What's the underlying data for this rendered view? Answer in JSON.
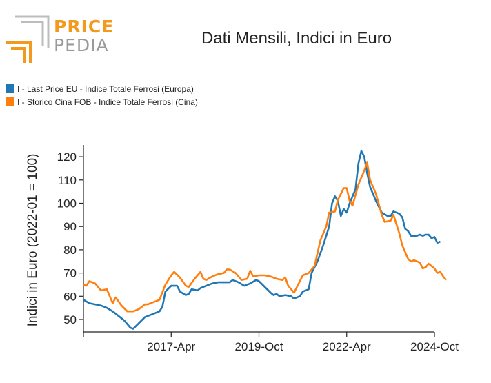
{
  "logo": {
    "line1": "PRICE",
    "line2": "PEDIA"
  },
  "colors": {
    "series1": "#1f77b4",
    "series2": "#ff7f0e",
    "logo_orange": "#f39a1e",
    "logo_gray": "#9a9a9a"
  },
  "chart_data": {
    "type": "line",
    "title": "Dati Mensili, Indici in Euro",
    "xlabel": "",
    "ylabel": "Indici in Euro (2022-01 = 100)",
    "ylim": [
      45,
      125
    ],
    "yticks": [
      50,
      60,
      70,
      80,
      90,
      100,
      110,
      120
    ],
    "xticks": [
      "2017-Apr",
      "2019-Oct",
      "2022-Apr",
      "2024-Oct"
    ],
    "x_range": [
      "2014-10",
      "2024-10"
    ],
    "grid": false,
    "legend_position": "top-left",
    "series": [
      {
        "name": "I - Last Price EU - Indice Totale Ferrosi (Europa)",
        "color": "#1f77b4",
        "points": [
          [
            "2014-10",
            58.5
          ],
          [
            "2014-12",
            57
          ],
          [
            "2015-02",
            56.5
          ],
          [
            "2015-04",
            56
          ],
          [
            "2015-06",
            55
          ],
          [
            "2015-08",
            53.5
          ],
          [
            "2015-10",
            51.5
          ],
          [
            "2015-12",
            49.5
          ],
          [
            "2016-02",
            46.5
          ],
          [
            "2016-03",
            46
          ],
          [
            "2016-05",
            48.5
          ],
          [
            "2016-07",
            51
          ],
          [
            "2016-08",
            51.5
          ],
          [
            "2016-10",
            52.5
          ],
          [
            "2016-12",
            53.5
          ],
          [
            "2017-01",
            55.5
          ],
          [
            "2017-02",
            62
          ],
          [
            "2017-04",
            64.5
          ],
          [
            "2017-06",
            64.5
          ],
          [
            "2017-07",
            62
          ],
          [
            "2017-09",
            60.5
          ],
          [
            "2017-10",
            61
          ],
          [
            "2017-11",
            63
          ],
          [
            "2018-01",
            62.5
          ],
          [
            "2018-02",
            63.5
          ],
          [
            "2018-04",
            64.5
          ],
          [
            "2018-06",
            65.5
          ],
          [
            "2018-08",
            66
          ],
          [
            "2018-10",
            66
          ],
          [
            "2018-12",
            66
          ],
          [
            "2019-01",
            67
          ],
          [
            "2019-03",
            66
          ],
          [
            "2019-05",
            64.5
          ],
          [
            "2019-07",
            65.5
          ],
          [
            "2019-09",
            67
          ],
          [
            "2019-10",
            66.5
          ],
          [
            "2019-12",
            64
          ],
          [
            "2020-02",
            61.5
          ],
          [
            "2020-03",
            60.5
          ],
          [
            "2020-04",
            61
          ],
          [
            "2020-05",
            60
          ],
          [
            "2020-07",
            60.5
          ],
          [
            "2020-09",
            60
          ],
          [
            "2020-10",
            59
          ],
          [
            "2020-12",
            60
          ],
          [
            "2021-01",
            62
          ],
          [
            "2021-03",
            63
          ],
          [
            "2021-04",
            70
          ],
          [
            "2021-06",
            75
          ],
          [
            "2021-08",
            82
          ],
          [
            "2021-10",
            90
          ],
          [
            "2021-11",
            100
          ],
          [
            "2021-12",
            103
          ],
          [
            "2022-01",
            101
          ],
          [
            "2022-02",
            94.5
          ],
          [
            "2022-03",
            97.5
          ],
          [
            "2022-04",
            96
          ],
          [
            "2022-05",
            100
          ],
          [
            "2022-07",
            106
          ],
          [
            "2022-08",
            117
          ],
          [
            "2022-09",
            122.5
          ],
          [
            "2022-10",
            120
          ],
          [
            "2022-11",
            113
          ],
          [
            "2022-12",
            107
          ],
          [
            "2023-02",
            101
          ],
          [
            "2023-04",
            96
          ],
          [
            "2023-06",
            94.5
          ],
          [
            "2023-07",
            94.5
          ],
          [
            "2023-08",
            96.5
          ],
          [
            "2023-10",
            95.5
          ],
          [
            "2023-11",
            94
          ],
          [
            "2023-12",
            89
          ],
          [
            "2024-01",
            88
          ],
          [
            "2024-02",
            86
          ],
          [
            "2024-04",
            86
          ],
          [
            "2024-05",
            86.5
          ],
          [
            "2024-06",
            86
          ],
          [
            "2024-07",
            86.5
          ],
          [
            "2024-08",
            86.5
          ],
          [
            "2024-09",
            85
          ],
          [
            "2024-10",
            85.5
          ],
          [
            "2024-11",
            83
          ],
          [
            "2024-12",
            83.5
          ]
        ]
      },
      {
        "name": "I - Storico Cina FOB - Indice Totale Ferrosi (Cina)",
        "color": "#ff7f0e",
        "points": [
          [
            "2014-10",
            65
          ],
          [
            "2014-11",
            64.5
          ],
          [
            "2014-12",
            66.5
          ],
          [
            "2015-02",
            65.5
          ],
          [
            "2015-04",
            62.5
          ],
          [
            "2015-06",
            63
          ],
          [
            "2015-08",
            57
          ],
          [
            "2015-09",
            59.5
          ],
          [
            "2015-11",
            56
          ],
          [
            "2016-01",
            53.5
          ],
          [
            "2016-03",
            53.5
          ],
          [
            "2016-05",
            54.5
          ],
          [
            "2016-07",
            56.5
          ],
          [
            "2016-08",
            56.5
          ],
          [
            "2016-10",
            57.5
          ],
          [
            "2016-12",
            58.5
          ],
          [
            "2017-02",
            65
          ],
          [
            "2017-04",
            69
          ],
          [
            "2017-05",
            70.5
          ],
          [
            "2017-07",
            68
          ],
          [
            "2017-09",
            64.5
          ],
          [
            "2017-10",
            64
          ],
          [
            "2017-12",
            67.5
          ],
          [
            "2018-02",
            70.5
          ],
          [
            "2018-03",
            67.5
          ],
          [
            "2018-04",
            67
          ],
          [
            "2018-06",
            68.5
          ],
          [
            "2018-08",
            69.5
          ],
          [
            "2018-10",
            70
          ],
          [
            "2018-11",
            71.5
          ],
          [
            "2018-12",
            71.5
          ],
          [
            "2019-02",
            70
          ],
          [
            "2019-04",
            67
          ],
          [
            "2019-06",
            67.5
          ],
          [
            "2019-07",
            71
          ],
          [
            "2019-08",
            68.5
          ],
          [
            "2019-10",
            69
          ],
          [
            "2019-12",
            69
          ],
          [
            "2020-02",
            68.5
          ],
          [
            "2020-04",
            67.5
          ],
          [
            "2020-06",
            67
          ],
          [
            "2020-07",
            68
          ],
          [
            "2020-08",
            64.5
          ],
          [
            "2020-10",
            61.5
          ],
          [
            "2020-11",
            64
          ],
          [
            "2021-01",
            69
          ],
          [
            "2021-03",
            70
          ],
          [
            "2021-05",
            73
          ],
          [
            "2021-07",
            84
          ],
          [
            "2021-09",
            90
          ],
          [
            "2021-10",
            96
          ],
          [
            "2021-12",
            96.5
          ],
          [
            "2022-01",
            101.5
          ],
          [
            "2022-03",
            106.5
          ],
          [
            "2022-04",
            106.5
          ],
          [
            "2022-05",
            101
          ],
          [
            "2022-06",
            99
          ],
          [
            "2022-08",
            108
          ],
          [
            "2022-10",
            114
          ],
          [
            "2022-11",
            117.5
          ],
          [
            "2022-12",
            110
          ],
          [
            "2023-02",
            104
          ],
          [
            "2023-04",
            95
          ],
          [
            "2023-05",
            92
          ],
          [
            "2023-07",
            92.5
          ],
          [
            "2023-08",
            95
          ],
          [
            "2023-10",
            87
          ],
          [
            "2023-11",
            82
          ],
          [
            "2024-01",
            76
          ],
          [
            "2024-02",
            75
          ],
          [
            "2024-03",
            75.5
          ],
          [
            "2024-05",
            74.5
          ],
          [
            "2024-06",
            72
          ],
          [
            "2024-07",
            72.5
          ],
          [
            "2024-08",
            74
          ],
          [
            "2024-09",
            73
          ],
          [
            "2024-10",
            72
          ],
          [
            "2024-11",
            70
          ],
          [
            "2024-12",
            70.5
          ],
          [
            "2025-01",
            68.5
          ],
          [
            "2025-02",
            67
          ]
        ]
      }
    ]
  }
}
